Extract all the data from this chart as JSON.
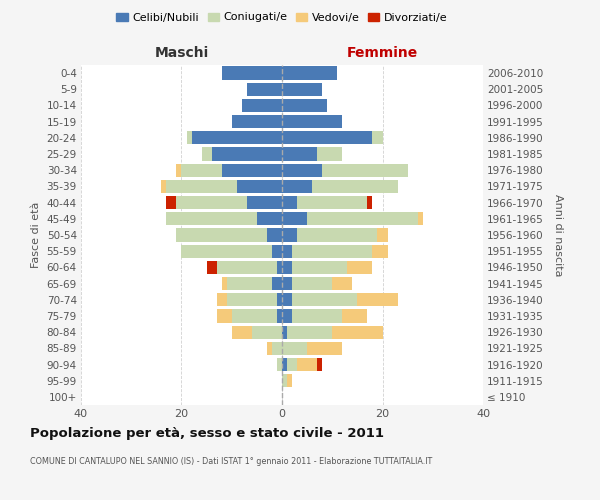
{
  "age_groups": [
    "100+",
    "95-99",
    "90-94",
    "85-89",
    "80-84",
    "75-79",
    "70-74",
    "65-69",
    "60-64",
    "55-59",
    "50-54",
    "45-49",
    "40-44",
    "35-39",
    "30-34",
    "25-29",
    "20-24",
    "15-19",
    "10-14",
    "5-9",
    "0-4"
  ],
  "birth_years": [
    "≤ 1910",
    "1911-1915",
    "1916-1920",
    "1921-1925",
    "1926-1930",
    "1931-1935",
    "1936-1940",
    "1941-1945",
    "1946-1950",
    "1951-1955",
    "1956-1960",
    "1961-1965",
    "1966-1970",
    "1971-1975",
    "1976-1980",
    "1981-1985",
    "1986-1990",
    "1991-1995",
    "1996-2000",
    "2001-2005",
    "2006-2010"
  ],
  "colors": {
    "celibi": "#4a7ab5",
    "coniugati": "#c8d9b0",
    "vedovi": "#f5ca7a",
    "divorziati": "#cc2200"
  },
  "maschi": {
    "celibi": [
      0,
      0,
      0,
      0,
      0,
      1,
      1,
      2,
      1,
      2,
      3,
      5,
      7,
      9,
      12,
      14,
      18,
      10,
      8,
      7,
      12
    ],
    "coniugati": [
      0,
      0,
      1,
      2,
      6,
      9,
      10,
      9,
      12,
      18,
      18,
      18,
      14,
      14,
      8,
      2,
      1,
      0,
      0,
      0,
      0
    ],
    "vedovi": [
      0,
      0,
      0,
      1,
      4,
      3,
      2,
      1,
      0,
      0,
      0,
      0,
      0,
      1,
      1,
      0,
      0,
      0,
      0,
      0,
      0
    ],
    "divorziati": [
      0,
      0,
      0,
      0,
      0,
      0,
      0,
      0,
      2,
      0,
      0,
      0,
      2,
      0,
      0,
      0,
      0,
      0,
      0,
      0,
      0
    ]
  },
  "femmine": {
    "celibi": [
      0,
      0,
      1,
      0,
      1,
      2,
      2,
      2,
      2,
      2,
      3,
      5,
      3,
      6,
      8,
      7,
      18,
      12,
      9,
      8,
      11
    ],
    "coniugati": [
      0,
      1,
      2,
      5,
      9,
      10,
      13,
      8,
      11,
      16,
      16,
      22,
      14,
      17,
      17,
      5,
      2,
      0,
      0,
      0,
      0
    ],
    "vedovi": [
      0,
      1,
      4,
      7,
      10,
      5,
      8,
      4,
      5,
      3,
      2,
      1,
      0,
      0,
      0,
      0,
      0,
      0,
      0,
      0,
      0
    ],
    "divorziati": [
      0,
      0,
      1,
      0,
      0,
      0,
      0,
      0,
      0,
      0,
      0,
      0,
      1,
      0,
      0,
      0,
      0,
      0,
      0,
      0,
      0
    ]
  },
  "xlim": [
    -40,
    40
  ],
  "title": "Popolazione per età, sesso e stato civile - 2011",
  "subtitle": "COMUNE DI CANTALUPO NEL SANNIO (IS) - Dati ISTAT 1° gennaio 2011 - Elaborazione TUTTAITALIA.IT",
  "xlabel_left": "Maschi",
  "xlabel_right": "Femmine",
  "ylabel_left": "Fasce di età",
  "ylabel_right": "Anni di nascita",
  "xticks": [
    -40,
    -20,
    0,
    20,
    40
  ],
  "xtick_labels": [
    "40",
    "20",
    "0",
    "20",
    "40"
  ],
  "legend_labels": [
    "Celibi/Nubili",
    "Coniugati/e",
    "Vedovi/e",
    "Divorziati/e"
  ],
  "bg_color": "#f5f5f5",
  "plot_bg_color": "#ffffff",
  "grid_color": "#cccccc"
}
